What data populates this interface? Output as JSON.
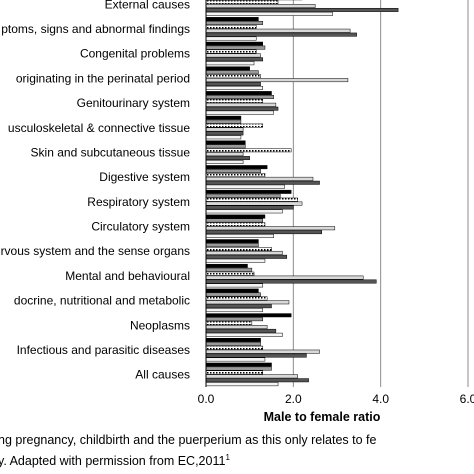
{
  "chart_data": {
    "type": "bar",
    "orientation": "horizontal",
    "xlabel": "Male to female ratio",
    "xlim": [
      0,
      6
    ],
    "xticks": [
      "0.0",
      "2.0",
      "4.0",
      "6.0"
    ],
    "grid": "vertical",
    "categories": [
      "External causes",
      "ptoms, signs and abnormal findings",
      "Congenital problems",
      "originating in the perinatal period",
      "Genitourinary system",
      "usculoskeletal  & connective tissue",
      "Skin and subcutaneous tissue",
      "Digestive system",
      "Respiratory system",
      "Circulatory system",
      "rvous system and the sense organs",
      "Mental and behavioural",
      "docrine, nutritional and metabolic",
      "Neoplasms",
      "Infectious and parasitic diseases",
      "All causes"
    ],
    "series": [
      {
        "fill": "#000000",
        "values": [
          4.2,
          1.2,
          1.3,
          1.0,
          1.5,
          0.8,
          0.9,
          1.4,
          1.95,
          1.35,
          1.2,
          0.95,
          1.2,
          1.95,
          1.25,
          1.5
        ]
      },
      {
        "fill": "#999999",
        "values": [
          2.2,
          1.3,
          1.35,
          1.2,
          1.55,
          0.8,
          0.9,
          1.25,
          1.7,
          1.3,
          1.2,
          1.05,
          1.25,
          1.3,
          1.25,
          1.5
        ]
      },
      {
        "fill": "pattern-dots",
        "values": [
          1.65,
          1.15,
          1.15,
          1.25,
          1.3,
          1.3,
          1.95,
          1.35,
          2.1,
          1.35,
          1.5,
          1.1,
          1.4,
          1.05,
          1.3,
          1.3
        ]
      },
      {
        "fill": "#d8d8d8",
        "values": [
          2.5,
          3.3,
          1.25,
          3.25,
          1.6,
          0.85,
          0.85,
          2.45,
          2.2,
          2.95,
          1.75,
          3.6,
          1.9,
          1.4,
          2.6,
          2.1
        ]
      },
      {
        "fill": "#555555",
        "values": [
          4.4,
          3.45,
          1.3,
          1.25,
          1.65,
          0.85,
          1.0,
          2.6,
          2.0,
          2.65,
          1.85,
          3.9,
          1.5,
          1.6,
          2.3,
          2.35
        ]
      },
      {
        "fill": "#f4f4f4",
        "values": [
          2.9,
          1.15,
          1.1,
          1.3,
          1.55,
          0.8,
          0.85,
          1.8,
          1.75,
          1.55,
          1.35,
          1.3,
          1.3,
          1.75,
          1.35,
          1.65
        ]
      }
    ]
  },
  "caption": {
    "line1": "ng pregnancy, childbirth and the puerperium as this only relates to fe",
    "line2": "y. Adapted with permission from EC,2011",
    "superscript": "1"
  }
}
